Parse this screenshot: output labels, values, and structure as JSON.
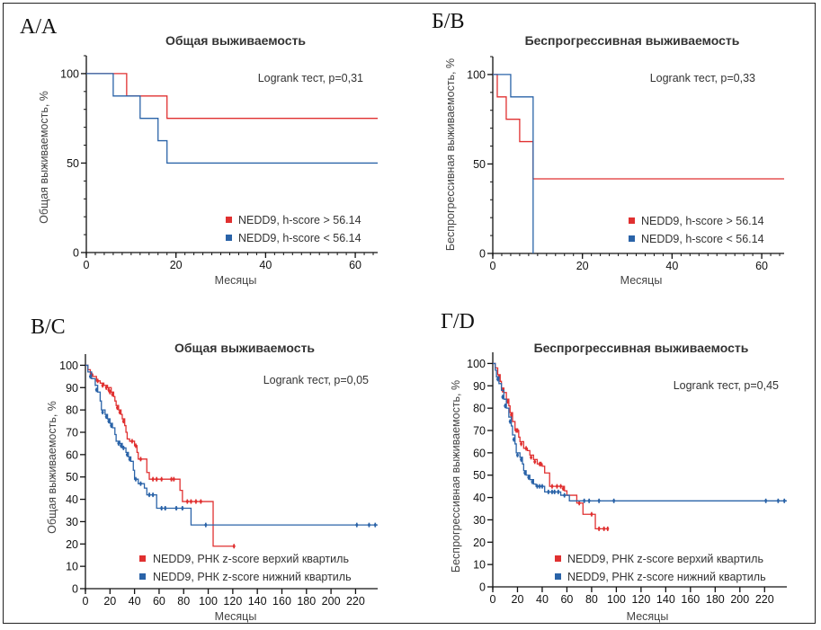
{
  "colors": {
    "high": "#e03030",
    "low": "#2a63a8",
    "axis": "#111111"
  },
  "chart_data": [
    {
      "id": "A",
      "type": "line",
      "panel_label": "А/A",
      "title": "Общая выживаемость",
      "xlabel": "Месяцы",
      "ylabel": "Общая выживаемость, %",
      "xlim": [
        0,
        65
      ],
      "ylim": [
        0,
        110
      ],
      "xticks": [
        0,
        20,
        40,
        60
      ],
      "xminor": 2,
      "yticks": [
        0,
        50,
        100
      ],
      "yminor": 10,
      "annotation": "Logrank тест, p=0,31",
      "legend_position": "bottom-right",
      "grid": false,
      "series": [
        {
          "name": "NEDD9, h-score > 56.14",
          "color_key": "high",
          "steps": [
            [
              0,
              100
            ],
            [
              9,
              87.5
            ],
            [
              18,
              75
            ],
            [
              65,
              75
            ]
          ],
          "censor": []
        },
        {
          "name": "NEDD9, h-score < 56.14",
          "color_key": "low",
          "steps": [
            [
              0,
              100
            ],
            [
              6,
              87.5
            ],
            [
              12,
              75
            ],
            [
              16,
              62.5
            ],
            [
              18,
              50
            ],
            [
              65,
              50
            ]
          ],
          "censor": []
        }
      ]
    },
    {
      "id": "B",
      "type": "line",
      "panel_label": "Б/B",
      "title": "Беспрогрессивная выживаемость",
      "xlabel": "Месяцы",
      "ylabel": "Беспрогрессивная выживаемость, %",
      "xlim": [
        0,
        65
      ],
      "ylim": [
        0,
        110
      ],
      "xticks": [
        0,
        20,
        40,
        60
      ],
      "xminor": 2,
      "yticks": [
        0,
        50,
        100
      ],
      "yminor": 10,
      "annotation": "Logrank тест, p=0,33",
      "legend_position": "bottom-right",
      "grid": false,
      "series": [
        {
          "name": "NEDD9, h-score > 56.14",
          "color_key": "high",
          "steps": [
            [
              0,
              100
            ],
            [
              1,
              87.5
            ],
            [
              3,
              75
            ],
            [
              6,
              62.5
            ],
            [
              9,
              41.7
            ],
            [
              65,
              41.7
            ]
          ],
          "censor": []
        },
        {
          "name": "NEDD9, h-score < 56.14",
          "color_key": "low",
          "steps": [
            [
              0,
              100
            ],
            [
              4,
              87.5
            ],
            [
              9,
              0
            ]
          ],
          "censor": []
        }
      ]
    },
    {
      "id": "C",
      "type": "line",
      "panel_label": "В/C",
      "title": "Общая выживаемость",
      "xlabel": "Месяцы",
      "ylabel": "Общая выживаемость, %",
      "xlim": [
        0,
        238
      ],
      "ylim": [
        0,
        105
      ],
      "xticks": [
        0,
        20,
        40,
        60,
        80,
        100,
        120,
        140,
        160,
        180,
        200,
        220
      ],
      "yticks": [
        0,
        10,
        20,
        30,
        40,
        50,
        60,
        70,
        80,
        90,
        100
      ],
      "annotation": "Logrank тест, p=0,05",
      "legend_position": "bottom-right",
      "grid": false,
      "series": [
        {
          "name": "NEDD9, РНК z-score верхий квартиль",
          "color_key": "high",
          "steps": [
            [
              0,
              100
            ],
            [
              2,
              98
            ],
            [
              4,
              96
            ],
            [
              6,
              95
            ],
            [
              9,
              93
            ],
            [
              12,
              92
            ],
            [
              15,
              91
            ],
            [
              18,
              90
            ],
            [
              21,
              88
            ],
            [
              23,
              86
            ],
            [
              24,
              84
            ],
            [
              25,
              82
            ],
            [
              27,
              80
            ],
            [
              29,
              78
            ],
            [
              30,
              76
            ],
            [
              32,
              73
            ],
            [
              33,
              70
            ],
            [
              34,
              67
            ],
            [
              36,
              66
            ],
            [
              40,
              64
            ],
            [
              42,
              61
            ],
            [
              43,
              58
            ],
            [
              50,
              52
            ],
            [
              52,
              49
            ],
            [
              77,
              44
            ],
            [
              79,
              39
            ],
            [
              104,
              19
            ],
            [
              121,
              19
            ]
          ],
          "censor": [
            [
              5,
              96
            ],
            [
              10,
              93
            ],
            [
              14,
              91
            ],
            [
              17,
              90
            ],
            [
              19,
              89
            ],
            [
              20,
              88
            ],
            [
              22,
              87
            ],
            [
              26,
              81
            ],
            [
              28,
              79
            ],
            [
              31,
              75
            ],
            [
              38,
              66
            ],
            [
              41,
              64
            ],
            [
              45,
              58
            ],
            [
              55,
              49
            ],
            [
              58,
              49
            ],
            [
              62,
              49
            ],
            [
              70,
              49
            ],
            [
              72,
              49
            ],
            [
              83,
              39
            ],
            [
              86,
              39
            ],
            [
              90,
              39
            ],
            [
              94,
              39
            ],
            [
              121,
              19
            ]
          ]
        },
        {
          "name": "NEDD9, РНК z-score нижний квартиль",
          "color_key": "low",
          "steps": [
            [
              0,
              100
            ],
            [
              2,
              97
            ],
            [
              5,
              94
            ],
            [
              8,
              91
            ],
            [
              10,
              88
            ],
            [
              12,
              84
            ],
            [
              13,
              80
            ],
            [
              16,
              78
            ],
            [
              18,
              76
            ],
            [
              20,
              74
            ],
            [
              22,
              72
            ],
            [
              24,
              69
            ],
            [
              25,
              66
            ],
            [
              28,
              65
            ],
            [
              30,
              63
            ],
            [
              33,
              61
            ],
            [
              35,
              59
            ],
            [
              37,
              57
            ],
            [
              39,
              53
            ],
            [
              40,
              49
            ],
            [
              43,
              47
            ],
            [
              48,
              45
            ],
            [
              50,
              42
            ],
            [
              58,
              36
            ],
            [
              86,
              28.5
            ],
            [
              238,
              28.5
            ]
          ],
          "censor": [
            [
              4,
              95
            ],
            [
              9,
              89
            ],
            [
              14,
              79
            ],
            [
              17,
              77
            ],
            [
              19,
              75
            ],
            [
              21,
              73
            ],
            [
              27,
              65
            ],
            [
              29,
              64
            ],
            [
              31,
              63
            ],
            [
              34,
              60
            ],
            [
              36,
              58
            ],
            [
              41,
              49
            ],
            [
              45,
              47
            ],
            [
              52,
              42
            ],
            [
              55,
              42
            ],
            [
              62,
              36
            ],
            [
              65,
              36
            ],
            [
              74,
              36
            ],
            [
              79,
              36
            ],
            [
              98,
              28.5
            ],
            [
              221,
              28.5
            ],
            [
              231,
              28.5
            ],
            [
              236,
              28.5
            ]
          ]
        }
      ]
    },
    {
      "id": "D",
      "type": "line",
      "panel_label": "Г/D",
      "title": "Беспрогрессивная выживаемость",
      "xlabel": "Месяцы",
      "ylabel": "Беспрогрессивная выживаемость, %",
      "xlim": [
        0,
        238
      ],
      "ylim": [
        0,
        105
      ],
      "xticks": [
        0,
        20,
        40,
        60,
        80,
        100,
        120,
        140,
        160,
        180,
        200,
        220
      ],
      "yticks": [
        0,
        10,
        20,
        30,
        40,
        50,
        60,
        70,
        80,
        90,
        100
      ],
      "annotation": "Logrank тест, p=0,45",
      "legend_position": "bottom-right",
      "grid": false,
      "series": [
        {
          "name": "NEDD9, РНК z-score верхий квартиль",
          "color_key": "high",
          "steps": [
            [
              0,
              100
            ],
            [
              2,
              98
            ],
            [
              4,
              95
            ],
            [
              6,
              92
            ],
            [
              7,
              89
            ],
            [
              9,
              87
            ],
            [
              11,
              84
            ],
            [
              13,
              81
            ],
            [
              14,
              78
            ],
            [
              16,
              74
            ],
            [
              18,
              70
            ],
            [
              21,
              67
            ],
            [
              22,
              65
            ],
            [
              25,
              62
            ],
            [
              28,
              61
            ],
            [
              30,
              59
            ],
            [
              33,
              57
            ],
            [
              36,
              55
            ],
            [
              40,
              54
            ],
            [
              42,
              51
            ],
            [
              46,
              45
            ],
            [
              58,
              43
            ],
            [
              60,
              41
            ],
            [
              68,
              37.5
            ],
            [
              73,
              32.5
            ],
            [
              83,
              26
            ],
            [
              93,
              26
            ]
          ],
          "censor": [
            [
              5,
              94
            ],
            [
              8,
              88
            ],
            [
              12,
              83
            ],
            [
              15,
              77
            ],
            [
              19,
              70
            ],
            [
              20,
              70
            ],
            [
              23,
              64
            ],
            [
              27,
              62
            ],
            [
              31,
              58
            ],
            [
              34,
              56
            ],
            [
              38,
              55
            ],
            [
              39,
              55
            ],
            [
              48,
              45
            ],
            [
              52,
              45
            ],
            [
              55,
              45
            ],
            [
              57,
              44
            ],
            [
              70,
              37.5
            ],
            [
              80,
              32.5
            ],
            [
              86,
              26
            ],
            [
              90,
              26
            ],
            [
              93,
              26
            ]
          ]
        },
        {
          "name": "NEDD9, РНК z-score нижний квартиль",
          "color_key": "low",
          "steps": [
            [
              0,
              100
            ],
            [
              2,
              97
            ],
            [
              3,
              94
            ],
            [
              5,
              91
            ],
            [
              7,
              88
            ],
            [
              9,
              84
            ],
            [
              11,
              80
            ],
            [
              13,
              76
            ],
            [
              15,
              72
            ],
            [
              16,
              68
            ],
            [
              18,
              64
            ],
            [
              19,
              60
            ],
            [
              22,
              58
            ],
            [
              24,
              55
            ],
            [
              25,
              52
            ],
            [
              27,
              50
            ],
            [
              30,
              48
            ],
            [
              33,
              46
            ],
            [
              35,
              45
            ],
            [
              42,
              42.5
            ],
            [
              55,
              41
            ],
            [
              62,
              38.5
            ],
            [
              238,
              38.5
            ]
          ],
          "censor": [
            [
              4,
              93
            ],
            [
              8,
              85
            ],
            [
              10,
              81
            ],
            [
              14,
              74
            ],
            [
              17,
              66
            ],
            [
              20,
              59
            ],
            [
              23,
              57
            ],
            [
              26,
              51
            ],
            [
              29,
              49
            ],
            [
              32,
              47
            ],
            [
              36,
              45
            ],
            [
              38,
              45
            ],
            [
              40,
              45
            ],
            [
              45,
              42.5
            ],
            [
              48,
              42.5
            ],
            [
              50,
              42.5
            ],
            [
              53,
              42.5
            ],
            [
              58,
              41
            ],
            [
              74,
              38.5
            ],
            [
              78,
              38.5
            ],
            [
              86,
              38.5
            ],
            [
              98,
              38.5
            ],
            [
              221,
              38.5
            ],
            [
              231,
              38.5
            ],
            [
              236,
              38.5
            ]
          ]
        }
      ]
    }
  ]
}
